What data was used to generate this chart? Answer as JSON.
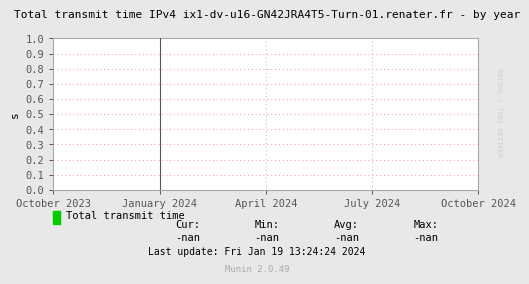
{
  "title": "Total transmit time IPv4 ix1-dv-u16-GN42JRA4T5-Turn-01.renater.fr - by year",
  "ylabel": "s",
  "bg_color": "#e8e8e8",
  "plot_bg_color": "#ffffff",
  "grid_color": "#ff9999",
  "border_color": "#aaaaaa",
  "title_color": "#000000",
  "axis_color": "#000000",
  "tick_color": "#555555",
  "ylim": [
    0.0,
    1.0
  ],
  "yticks": [
    0.0,
    0.1,
    0.2,
    0.3,
    0.4,
    0.5,
    0.6,
    0.7,
    0.8,
    0.9,
    1.0
  ],
  "xtick_labels": [
    "October 2023",
    "January 2024",
    "April 2024",
    "July 2024",
    "October 2024"
  ],
  "xtick_positions": [
    0.0,
    0.25,
    0.5,
    0.75,
    1.0
  ],
  "legend_label": "Total transmit time",
  "legend_color": "#00cc00",
  "cur_label": "Cur:",
  "cur_val": "-nan",
  "min_label": "Min:",
  "min_val": "-nan",
  "avg_label": "Avg:",
  "avg_val": "-nan",
  "max_label": "Max:",
  "max_val": "-nan",
  "last_update": "Last update: Fri Jan 19 13:24:24 2024",
  "munin_version": "Munin 2.0.49",
  "vertical_line_x": 0.25,
  "vertical_line_color": "#555555",
  "right_label": "RRTOOL / TOBI OETIKER",
  "right_label_color": "#ccccdd"
}
